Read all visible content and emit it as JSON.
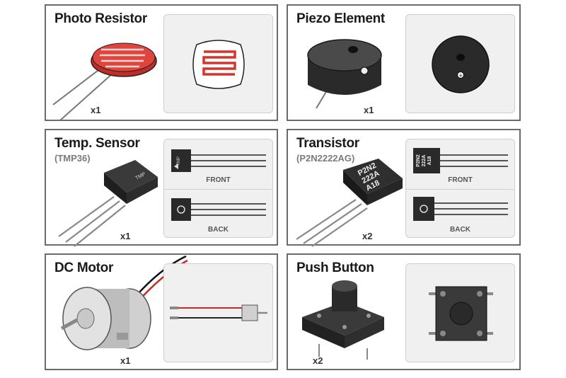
{
  "cards": [
    {
      "title": "Photo Resistor",
      "subtitle": "",
      "qty": "x1"
    },
    {
      "title": "Piezo Element",
      "subtitle": "",
      "qty": "x1"
    },
    {
      "title": "Temp. Sensor",
      "subtitle": "(TMP36)",
      "qty": "x1",
      "front": "FRONT",
      "back": "BACK",
      "chip_text": "TMP"
    },
    {
      "title": "Transistor",
      "subtitle": "(P2N2222AG)",
      "qty": "x2",
      "front": "FRONT",
      "back": "BACK",
      "chip_lines": [
        "P2N2",
        "222A",
        "A18"
      ]
    },
    {
      "title": "DC Motor",
      "subtitle": "",
      "qty": "x1"
    },
    {
      "title": "Push Button",
      "subtitle": "",
      "qty": "x2"
    }
  ],
  "colors": {
    "border": "#6b6b6b",
    "panel": "#f0f0f0",
    "resistor_red": "#d8322b",
    "dark": "#2a2a2a"
  }
}
